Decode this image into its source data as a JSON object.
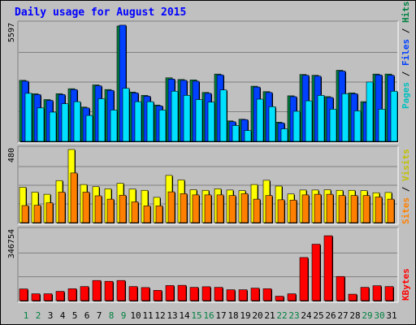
{
  "chart_data": [
    {
      "type": "bar",
      "title": "Daily usage for August 2015",
      "categories": [
        "1",
        "2",
        "3",
        "4",
        "5",
        "6",
        "7",
        "8",
        "9",
        "10",
        "11",
        "12",
        "13",
        "14",
        "15",
        "16",
        "17",
        "18",
        "19",
        "20",
        "21",
        "22",
        "23",
        "24",
        "25",
        "26",
        "27",
        "28",
        "29",
        "30",
        "31"
      ],
      "weekend_days": [
        "1",
        "2",
        "8",
        "9",
        "15",
        "16",
        "22",
        "23",
        "29",
        "30"
      ],
      "ymax_label": "5597",
      "ylim": [
        0,
        5597
      ],
      "legend": [
        "Pages",
        "Files",
        "Hits"
      ],
      "series": [
        {
          "name": "Hits",
          "color": "#008040",
          "values": [
            2920,
            2280,
            2000,
            2280,
            2520,
            1640,
            2700,
            2480,
            5520,
            2360,
            2200,
            1740,
            3040,
            2960,
            2940,
            2340,
            3220,
            980,
            1060,
            2640,
            2380,
            920,
            2180,
            3200,
            3160,
            2140,
            3400,
            2320,
            1900,
            3220,
            3220
          ]
        },
        {
          "name": "Files",
          "color": "#0040ff",
          "values": [
            2880,
            2240,
            1960,
            2240,
            2480,
            1600,
            2660,
            2440,
            5560,
            2320,
            2160,
            1700,
            2980,
            2920,
            2880,
            2300,
            3180,
            940,
            1040,
            2600,
            2340,
            880,
            2140,
            3160,
            3120,
            2100,
            3360,
            2280,
            1860,
            3180,
            3160
          ]
        },
        {
          "name": "Pages",
          "color": "#00e0ff",
          "values": [
            2300,
            1600,
            1400,
            1800,
            1900,
            1240,
            2040,
            1500,
            2540,
            1900,
            1900,
            1500,
            2400,
            2200,
            2000,
            1880,
            2460,
            760,
            520,
            2020,
            1660,
            600,
            1440,
            1940,
            2200,
            1540,
            2280,
            1460,
            2840,
            1540,
            2400
          ]
        }
      ]
    },
    {
      "type": "bar",
      "ymax_label": "480",
      "ylim": [
        0,
        480
      ],
      "legend": [
        "Sites",
        "Visits"
      ],
      "series": [
        {
          "name": "Visits",
          "color": "#ffff00",
          "values": [
            232,
            200,
            186,
            276,
            480,
            250,
            236,
            222,
            258,
            220,
            212,
            166,
            310,
            280,
            216,
            212,
            222,
            214,
            210,
            250,
            278,
            240,
            188,
            214,
            214,
            216,
            212,
            212,
            210,
            196,
            198
          ]
        },
        {
          "name": "Sites",
          "color": "#ff8000",
          "values": [
            112,
            114,
            130,
            200,
            326,
            200,
            176,
            154,
            180,
            136,
            110,
            110,
            202,
            190,
            182,
            182,
            182,
            178,
            190,
            154,
            178,
            150,
            148,
            182,
            186,
            186,
            178,
            178,
            178,
            168,
            154
          ]
        }
      ]
    },
    {
      "type": "bar",
      "ymax_label": "346754",
      "ylim": [
        0,
        346754
      ],
      "legend": [
        "KBytes"
      ],
      "series": [
        {
          "name": "KBytes",
          "color": "#ff0000",
          "values": [
            58000,
            34000,
            34000,
            46000,
            59000,
            70000,
            100000,
            96000,
            100000,
            70000,
            65000,
            51000,
            75000,
            76000,
            66000,
            69000,
            66000,
            54000,
            54000,
            62000,
            59000,
            22000,
            34000,
            214000,
            280000,
            322000,
            120000,
            32000,
            66000,
            74000,
            70000
          ]
        }
      ]
    }
  ]
}
